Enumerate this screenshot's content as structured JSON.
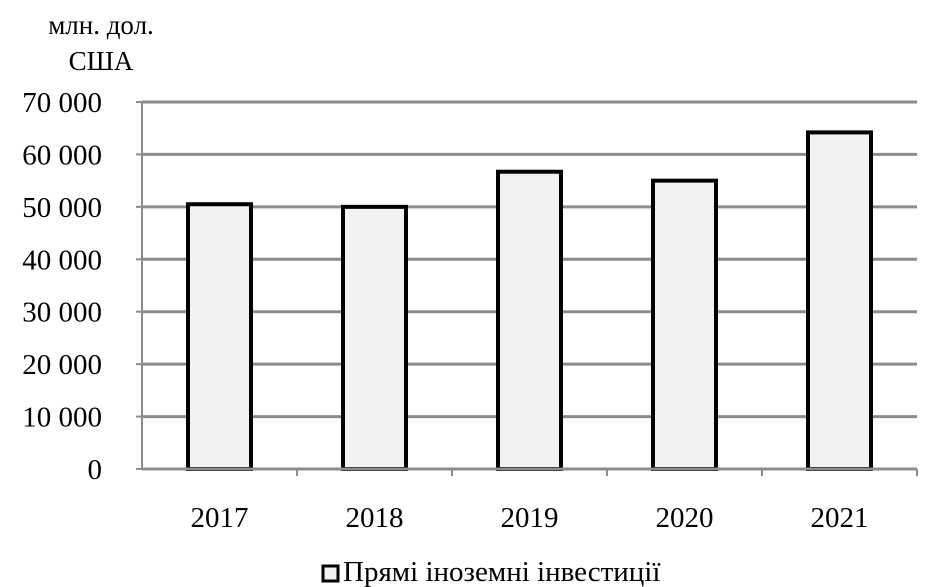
{
  "chart_data": {
    "type": "bar",
    "ylabel": [
      "млн. дол.",
      "США"
    ],
    "categories": [
      "2017",
      "2018",
      "2019",
      "2020",
      "2021"
    ],
    "series": [
      {
        "name": "Прямі іноземні інвестиції",
        "values": [
          50500,
          50000,
          56700,
          55000,
          64200
        ]
      }
    ],
    "ylim": [
      0,
      70000
    ],
    "yticks": [
      0,
      10000,
      20000,
      30000,
      40000,
      50000,
      60000,
      70000
    ],
    "ytick_labels": [
      "0",
      "10 000",
      "20 000",
      "30 000",
      "40 000",
      "50 000",
      "60 000",
      "70 000"
    ],
    "grid": true,
    "legend": "bottom",
    "colors": {
      "bar_fill": "#f2f2f2",
      "bar_stroke": "#000000",
      "grid": "#8c8c8c",
      "axis": "#8c8c8c"
    }
  }
}
